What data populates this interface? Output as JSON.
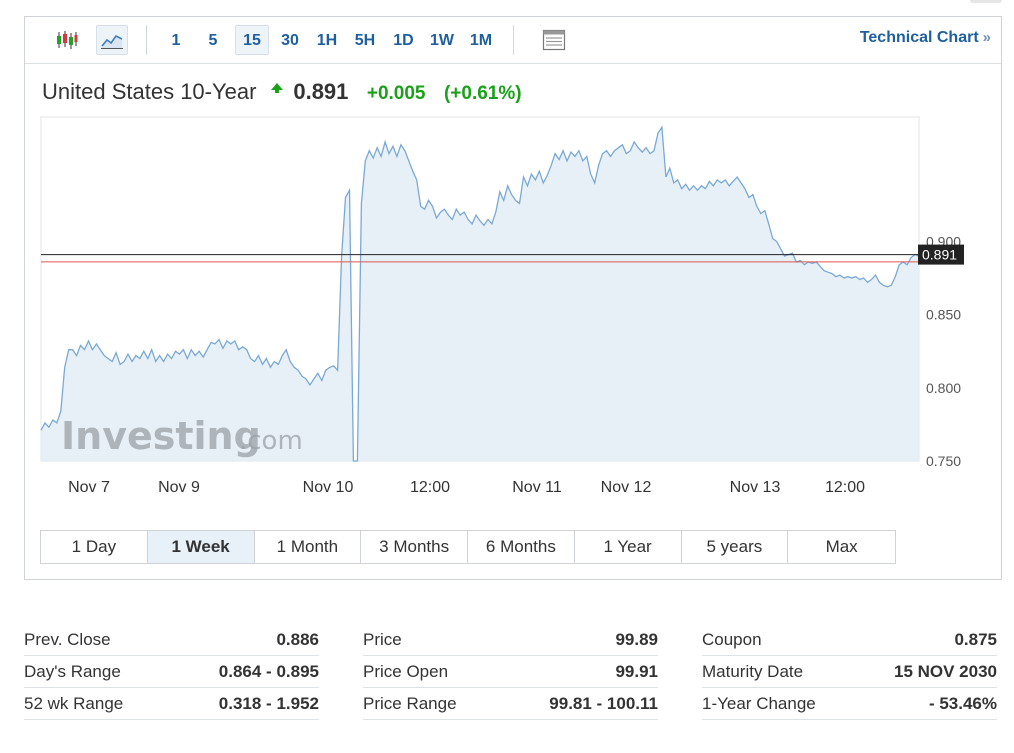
{
  "toolbar": {
    "intervals": [
      "1",
      "5",
      "15",
      "30",
      "1H",
      "5H",
      "1D",
      "1W",
      "1M"
    ],
    "active_interval": "15",
    "technical_chart_label": "Technical Chart",
    "chevrons": "»"
  },
  "instrument": {
    "name": "United States 10-Year",
    "last": "0.891",
    "change": "+0.005",
    "change_pct": "(+0.61%)",
    "direction": "up"
  },
  "colors": {
    "accent": "#1e5f9f",
    "positive": "#1aa01a",
    "line": "#7aa9d6",
    "area": "#e3edf5",
    "last_price_line": "#222222",
    "prev_close_line": "#e05555"
  },
  "chart_data": {
    "type": "area",
    "title": "",
    "xlabel": "",
    "ylabel": "",
    "ylim": [
      0.75,
      0.985
    ],
    "y_ticks": [
      "0.900",
      "0.850",
      "0.800",
      "0.750"
    ],
    "x_ticks": [
      "Nov 7",
      "Nov 9",
      "Nov 10",
      "12:00",
      "Nov 11",
      "Nov 12",
      "Nov 13",
      "12:00"
    ],
    "last_value": 0.891,
    "last_value_label": "0.891",
    "prev_close": 0.886,
    "watermark": "Investing.com",
    "series": [
      {
        "values": [
          0.771,
          0.776,
          0.773,
          0.778,
          0.776,
          0.784,
          0.814,
          0.826,
          0.826,
          0.822,
          0.829,
          0.826,
          0.832,
          0.826,
          0.83,
          0.826,
          0.822,
          0.82,
          0.818,
          0.824,
          0.816,
          0.818,
          0.823,
          0.818,
          0.822,
          0.82,
          0.825,
          0.82,
          0.826,
          0.818,
          0.822,
          0.818,
          0.823,
          0.82,
          0.825,
          0.823,
          0.826,
          0.82,
          0.826,
          0.822,
          0.825,
          0.821,
          0.826,
          0.831,
          0.83,
          0.833,
          0.827,
          0.832,
          0.83,
          0.832,
          0.826,
          0.828,
          0.826,
          0.82,
          0.818,
          0.822,
          0.816,
          0.82,
          0.814,
          0.818,
          0.816,
          0.822,
          0.826,
          0.818,
          0.814,
          0.812,
          0.808,
          0.806,
          0.802,
          0.806,
          0.81,
          0.805,
          0.812,
          0.814,
          0.815,
          0.812,
          0.89,
          0.93,
          0.935,
          0.75,
          0.75,
          0.926,
          0.955,
          0.962,
          0.957,
          0.964,
          0.958,
          0.968,
          0.96,
          0.965,
          0.958,
          0.966,
          0.962,
          0.955,
          0.948,
          0.942,
          0.924,
          0.922,
          0.928,
          0.924,
          0.916,
          0.92,
          0.922,
          0.918,
          0.915,
          0.922,
          0.918,
          0.92,
          0.915,
          0.912,
          0.918,
          0.914,
          0.911,
          0.915,
          0.912,
          0.92,
          0.934,
          0.928,
          0.938,
          0.932,
          0.928,
          0.926,
          0.944,
          0.938,
          0.946,
          0.942,
          0.948,
          0.94,
          0.945,
          0.952,
          0.96,
          0.956,
          0.962,
          0.955,
          0.961,
          0.958,
          0.962,
          0.955,
          0.958,
          0.946,
          0.94,
          0.952,
          0.96,
          0.962,
          0.958,
          0.962,
          0.964,
          0.966,
          0.96,
          0.962,
          0.968,
          0.964,
          0.961,
          0.964,
          0.96,
          0.962,
          0.974,
          0.978,
          0.944,
          0.95,
          0.94,
          0.942,
          0.936,
          0.939,
          0.935,
          0.938,
          0.935,
          0.938,
          0.936,
          0.941,
          0.938,
          0.942,
          0.94,
          0.942,
          0.938,
          0.941,
          0.944,
          0.94,
          0.936,
          0.93,
          0.932,
          0.924,
          0.919,
          0.921,
          0.912,
          0.902,
          0.9,
          0.895,
          0.89,
          0.891,
          0.892,
          0.886,
          0.887,
          0.884,
          0.886,
          0.885,
          0.886,
          0.883,
          0.88,
          0.879,
          0.878,
          0.876,
          0.877,
          0.875,
          0.876,
          0.875,
          0.876,
          0.874,
          0.875,
          0.872,
          0.874,
          0.877,
          0.872,
          0.87,
          0.869,
          0.87,
          0.876,
          0.884,
          0.886,
          0.884,
          0.889,
          0.891,
          0.89
        ]
      }
    ]
  },
  "ranges": {
    "items": [
      "1 Day",
      "1 Week",
      "1 Month",
      "3 Months",
      "6 Months",
      "1 Year",
      "5 years",
      "Max"
    ],
    "active": "1 Week"
  },
  "stats": {
    "col1": [
      {
        "label": "Prev. Close",
        "value": "0.886"
      },
      {
        "label": "Day's Range",
        "value": "0.864 - 0.895"
      },
      {
        "label": "52 wk Range",
        "value": "0.318 - 1.952"
      }
    ],
    "col2": [
      {
        "label": "Price",
        "value": "99.89"
      },
      {
        "label": "Price Open",
        "value": "99.91"
      },
      {
        "label": "Price Range",
        "value": "99.81 - 100.11"
      }
    ],
    "col3": [
      {
        "label": "Coupon",
        "value": "0.875"
      },
      {
        "label": "Maturity Date",
        "value": "15 NOV 2030"
      },
      {
        "label": "1-Year Change",
        "value": "- 53.46%"
      }
    ]
  }
}
